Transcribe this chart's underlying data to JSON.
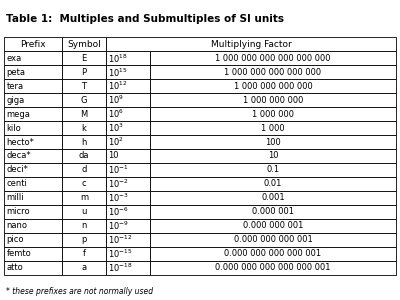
{
  "title": "Table 1:  Multiples and Submultiples of SI units",
  "rows": [
    [
      "exa",
      "E",
      "$10^{18}$",
      "1 000 000 000 000 000 000"
    ],
    [
      "peta",
      "P",
      "$10^{15}$",
      "1 000 000 000 000 000"
    ],
    [
      "tera",
      "T",
      "$10^{12}$",
      "1 000 000 000 000"
    ],
    [
      "giga",
      "G",
      "$10^{9}$",
      "1 000 000 000"
    ],
    [
      "mega",
      "M",
      "$10^{6}$",
      "1 000 000"
    ],
    [
      "kilo",
      "k",
      "$10^{3}$",
      "1 000"
    ],
    [
      "hecto*",
      "h",
      "$10^{2}$",
      "100"
    ],
    [
      "deca*",
      "da",
      "10",
      "10"
    ],
    [
      "deci*",
      "d",
      "$10^{-1}$",
      "0.1"
    ],
    [
      "centi",
      "c",
      "$10^{-2}$",
      "0.01"
    ],
    [
      "milli",
      "m",
      "$10^{-3}$",
      "0.001"
    ],
    [
      "micro",
      "u",
      "$10^{-6}$",
      "0.000 001"
    ],
    [
      "nano",
      "n",
      "$10^{-9}$",
      "0.000 000 001"
    ],
    [
      "pico",
      "p",
      "$10^{-12}$",
      "0.000 000 000 001"
    ],
    [
      "femto",
      "f",
      "$10^{-15}$",
      "0.000 000 000 000 001"
    ],
    [
      "atto",
      "a",
      "$10^{-18}$",
      "0.000 000 000 000 000 001"
    ]
  ],
  "footnote": "* these prefixes are not normally used",
  "bg_color": "#ffffff",
  "text_color": "#000000",
  "title_fontsize": 7.5,
  "header_fontsize": 6.5,
  "cell_fontsize": 6.0
}
